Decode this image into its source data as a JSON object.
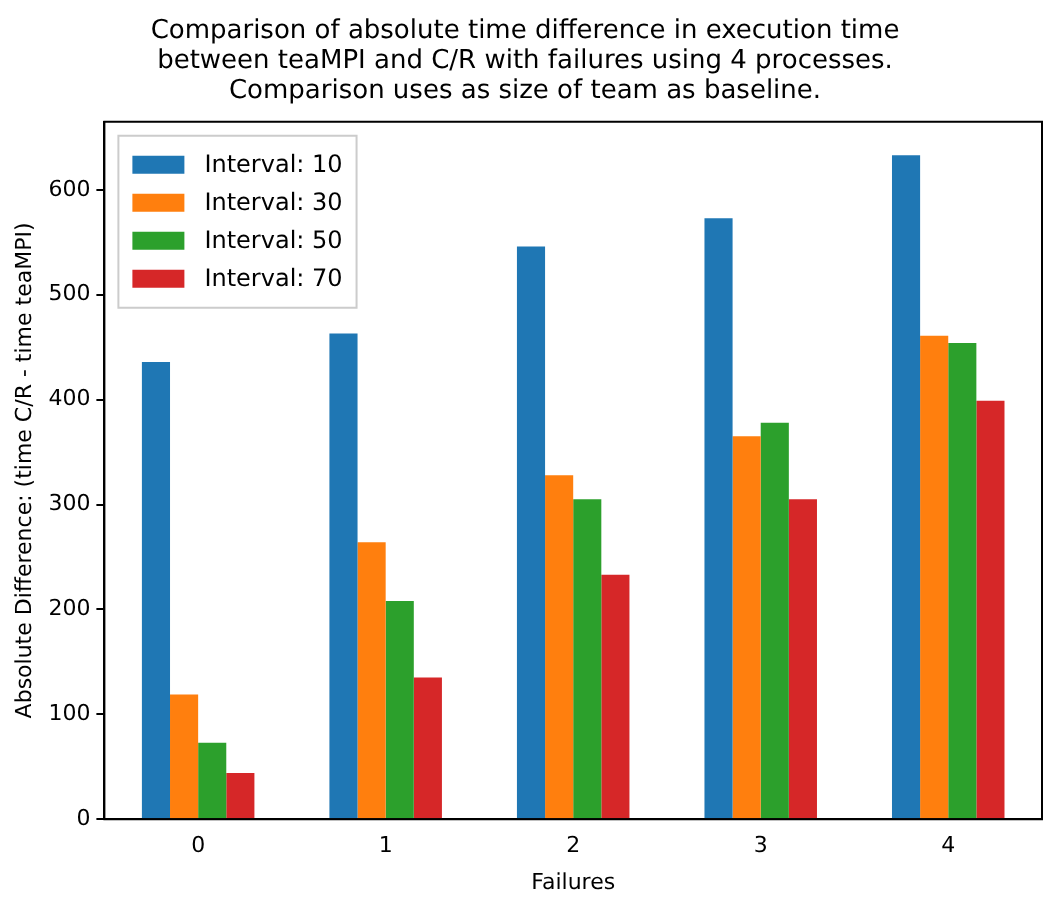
{
  "chart_data": {
    "type": "bar",
    "title": "Comparison of absolute time difference in execution time\nbetween teaMPI and C/R with failures using 4 processes.\nComparison uses as size of team as baseline.",
    "xlabel": "Failures",
    "ylabel": "Absolute Difference: (time C/R - time teaMPI)",
    "categories": [
      "0",
      "1",
      "2",
      "3",
      "4"
    ],
    "series": [
      {
        "name": "Interval: 10",
        "color": "#1f77b4",
        "values": [
          436,
          463,
          546,
          573,
          633
        ]
      },
      {
        "name": "Interval: 30",
        "color": "#ff7f0e",
        "values": [
          119,
          264,
          328,
          365,
          461
        ]
      },
      {
        "name": "Interval: 50",
        "color": "#2ca02c",
        "values": [
          73,
          208,
          305,
          378,
          454
        ]
      },
      {
        "name": "Interval: 70",
        "color": "#d62728",
        "values": [
          44,
          135,
          233,
          305,
          399
        ]
      }
    ],
    "ylim": [
      0,
      665
    ],
    "yticks": [
      0,
      100,
      200,
      300,
      400,
      500,
      600
    ],
    "grid": false,
    "legend": "top left"
  }
}
